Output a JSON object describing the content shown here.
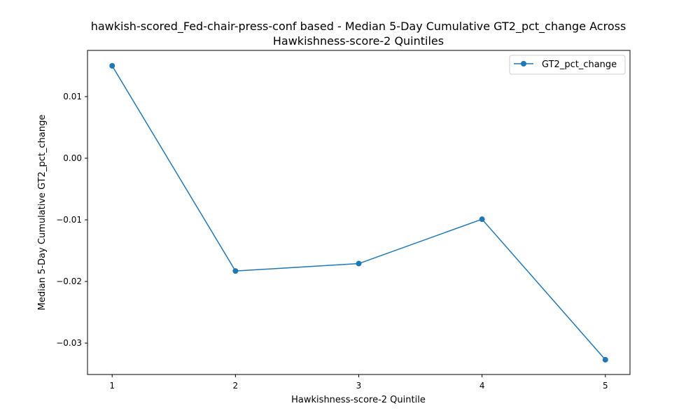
{
  "chart_data": {
    "type": "line",
    "title_lines": [
      "hawkish-scored_Fed-chair-press-conf based - Median 5-Day Cumulative GT2_pct_change Across",
      "Hawkishness-score-2 Quintiles"
    ],
    "xlabel": "Hawkishness-score-2 Quintile",
    "ylabel": "Median 5-Day Cumulative GT2_pct_change",
    "x": [
      1,
      2,
      3,
      4,
      5
    ],
    "x_tick_labels": [
      "1",
      "2",
      "3",
      "4",
      "5"
    ],
    "xlim": [
      0.8,
      5.2
    ],
    "y_ticks": [
      0.01,
      0.0,
      -0.01,
      -0.02,
      -0.03
    ],
    "y_tick_labels": [
      "0.01",
      "0.00",
      "−0.01",
      "−0.02",
      "−0.03"
    ],
    "ylim": [
      -0.0351,
      0.0175
    ],
    "series": [
      {
        "name": "GT2_pct_change",
        "color": "#1f77b4",
        "marker": "circle",
        "values": [
          0.015,
          -0.0183,
          -0.0171,
          -0.0099,
          -0.0327
        ]
      }
    ],
    "legend_position": "top-right",
    "grid": false
  }
}
